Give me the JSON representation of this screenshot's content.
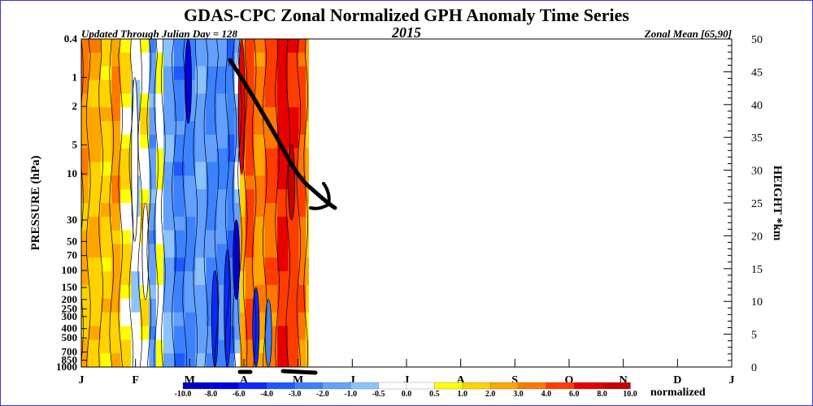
{
  "chart_data": {
    "type": "heatmap",
    "title": "GDAS-CPC Zonal Normalized GPH Anomaly Time Series",
    "subtitle_left": "Updated Through Julian Day = 128",
    "subtitle_center": "2015",
    "subtitle_right": "Zonal Mean [65,90]",
    "ylabel_left": "PRESSURE (hPa)",
    "ylabel_right": "HEIGHT *km",
    "colorbar_unit": "normalized",
    "y_scale": "log",
    "y_range_hpa": [
      1000,
      0.4
    ],
    "y_tick_labels": [
      "0.4",
      "1",
      "2",
      "5",
      "10",
      "30",
      "50",
      "70",
      "100",
      "150",
      "200",
      "250",
      "300",
      "400",
      "500",
      "700",
      "850",
      "1000"
    ],
    "y_tick_values": [
      0.4,
      1,
      2,
      5,
      10,
      30,
      50,
      70,
      100,
      150,
      200,
      250,
      300,
      400,
      500,
      700,
      850,
      1000
    ],
    "height_tick_labels": [
      "0",
      "5",
      "10",
      "15",
      "20",
      "25",
      "30",
      "35",
      "40",
      "45",
      "50"
    ],
    "height_tick_values": [
      0,
      5,
      10,
      15,
      20,
      25,
      30,
      35,
      40,
      45,
      50
    ],
    "month_labels": [
      "J",
      "F",
      "M",
      "A",
      "M",
      "J",
      "J",
      "A",
      "S",
      "O",
      "N",
      "D",
      "J"
    ],
    "data_extent_day": 128,
    "colorbar_labels": [
      "-10.0",
      "-8.0",
      "-6.0",
      "-4.0",
      "-3.0",
      "-2.0",
      "-1.0",
      "-0.5",
      "0.0",
      "0.5",
      "1.0",
      "2.0",
      "3.0",
      "4.0",
      "6.0",
      "8.0",
      "10.0"
    ],
    "colorbar_colors": [
      "#0000c8",
      "#0000e6",
      "#0a28ff",
      "#1e5aff",
      "#3c82ff",
      "#64a0ff",
      "#8cc3ff",
      "#ffffff",
      "#ffffff",
      "#ffff00",
      "#ffd200",
      "#ffa500",
      "#ff7800",
      "#ff3c00",
      "#e60000",
      "#c80000"
    ],
    "time_bands": [
      {
        "d0": 0,
        "d1": 4,
        "v": 3.0
      },
      {
        "d0": 4,
        "d1": 11,
        "v": 2.5
      },
      {
        "d0": 11,
        "d1": 17,
        "v": 1.5
      },
      {
        "d0": 17,
        "d1": 22,
        "v": 3.2
      },
      {
        "d0": 22,
        "d1": 28,
        "v": 1.0
      },
      {
        "d0": 28,
        "d1": 33,
        "v": -0.3
      },
      {
        "d0": 33,
        "d1": 38,
        "v": 0.8
      },
      {
        "d0": 38,
        "d1": 42,
        "v": -1.5
      },
      {
        "d0": 42,
        "d1": 46,
        "v": 0.3
      },
      {
        "d0": 46,
        "d1": 52,
        "v": -1.2
      },
      {
        "d0": 52,
        "d1": 58,
        "v": -2.5
      },
      {
        "d0": 58,
        "d1": 64,
        "v": -2.0
      },
      {
        "d0": 64,
        "d1": 70,
        "v": -1.3
      },
      {
        "d0": 70,
        "d1": 76,
        "v": -2.2
      },
      {
        "d0": 76,
        "d1": 82,
        "v": -1.8
      },
      {
        "d0": 82,
        "d1": 86,
        "v": -2.6
      },
      {
        "d0": 86,
        "d1": 89,
        "v": -1.0
      },
      {
        "d0": 89,
        "d1": 92,
        "v": 2.0
      },
      {
        "d0": 92,
        "d1": 97,
        "v": 5.0
      },
      {
        "d0": 97,
        "d1": 103,
        "v": 3.5
      },
      {
        "d0": 103,
        "d1": 110,
        "v": 4.5
      },
      {
        "d0": 110,
        "d1": 116,
        "v": 7.0
      },
      {
        "d0": 116,
        "d1": 122,
        "v": 6.0
      },
      {
        "d0": 122,
        "d1": 126,
        "v": 4.5
      },
      {
        "d0": 126,
        "d1": 128,
        "v": 2.5
      }
    ],
    "features": [
      {
        "day": 30,
        "p0": 50,
        "p1": 1,
        "v": 0.0
      },
      {
        "day": 36,
        "p0": 200,
        "p1": 20,
        "v": 0.2
      },
      {
        "day": 60,
        "p0": 3,
        "p1": 0.4,
        "v": -8.0
      },
      {
        "day": 75,
        "p0": 1000,
        "p1": 100,
        "v": -5.0
      },
      {
        "day": 82,
        "p0": 1000,
        "p1": 60,
        "v": -6.0
      },
      {
        "day": 87,
        "p0": 200,
        "p1": 30,
        "v": -8.0
      },
      {
        "day": 98,
        "p0": 1000,
        "p1": 150,
        "v": -6.0
      },
      {
        "day": 105,
        "p0": 1000,
        "p1": 200,
        "v": -3.0
      },
      {
        "day": 90,
        "p0": 10,
        "p1": 0.4,
        "v": 6.0
      },
      {
        "day": 118,
        "p0": 30,
        "p1": 5,
        "v": 8.0
      }
    ]
  },
  "annotation": {
    "arrow_color": "#000000"
  }
}
